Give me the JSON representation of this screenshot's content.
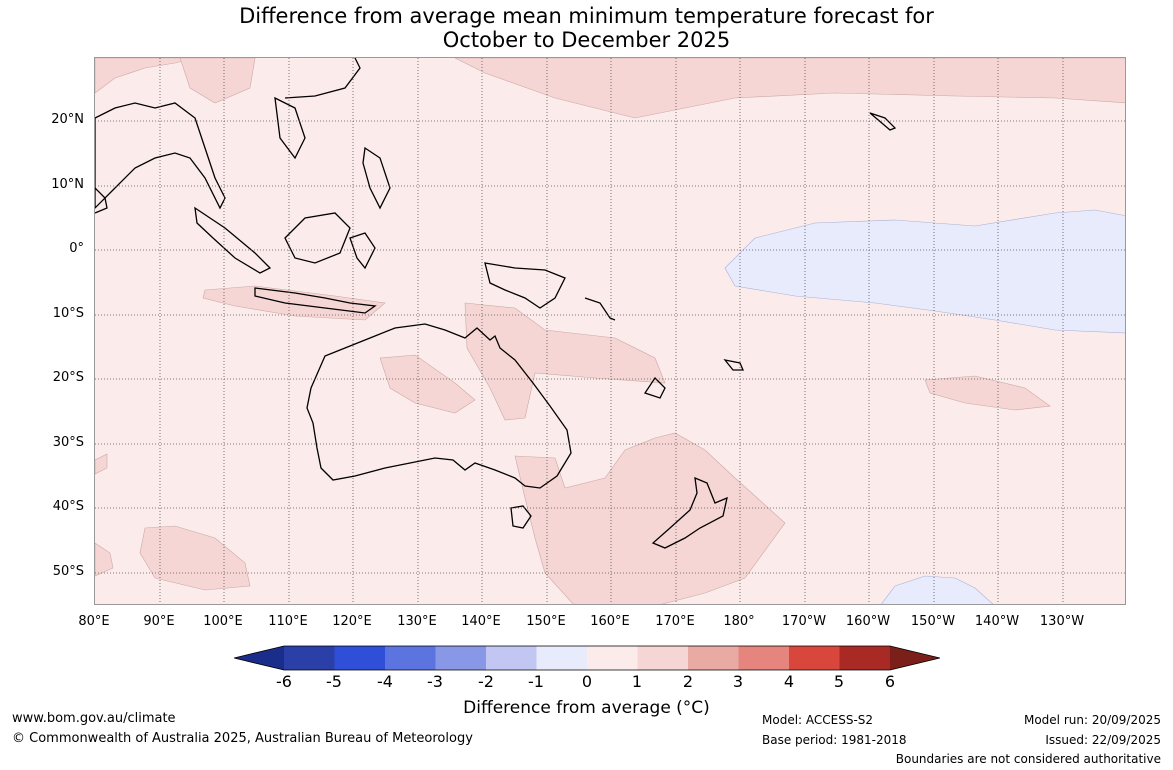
{
  "title": {
    "line1": "Difference from average mean minimum temperature forecast for",
    "line2": "October to December 2025"
  },
  "map": {
    "lat_labels": [
      "20°N",
      "10°N",
      "0°",
      "10°S",
      "20°S",
      "30°S",
      "40°S",
      "50°S"
    ],
    "lon_labels": [
      "80°E",
      "90°E",
      "100°E",
      "110°E",
      "120°E",
      "130°E",
      "140°E",
      "150°E",
      "160°E",
      "170°E",
      "180°",
      "170°W",
      "160°W",
      "150°W",
      "140°W",
      "130°W"
    ],
    "background_color": "#fbeceb"
  },
  "colorbar": {
    "tick_labels": [
      "-6",
      "-5",
      "-4",
      "-3",
      "-2",
      "-1",
      "0",
      "1",
      "2",
      "3",
      "4",
      "5",
      "6"
    ],
    "colors": [
      "#1b2d8a",
      "#2a3fa8",
      "#2f4fd8",
      "#5c74e0",
      "#8898e6",
      "#c1c7f2",
      "#e8ebfb",
      "#fbeceb",
      "#f5d6d4",
      "#eaaaa4",
      "#e5857d",
      "#d9473c",
      "#a92a24",
      "#7b1f1a"
    ],
    "label": "Difference from average (°C)"
  },
  "footer": {
    "website": "www.bom.gov.au/climate",
    "copyright": "© Commonwealth of Australia 2025, Australian Bureau of Meteorology",
    "model": "Model: ACCESS-S2",
    "base_period": "Base period: 1981-2018",
    "model_run": "Model run: 20/09/2025",
    "issued": "Issued: 22/09/2025",
    "disclaimer": "Boundaries are not considered authoritative"
  }
}
